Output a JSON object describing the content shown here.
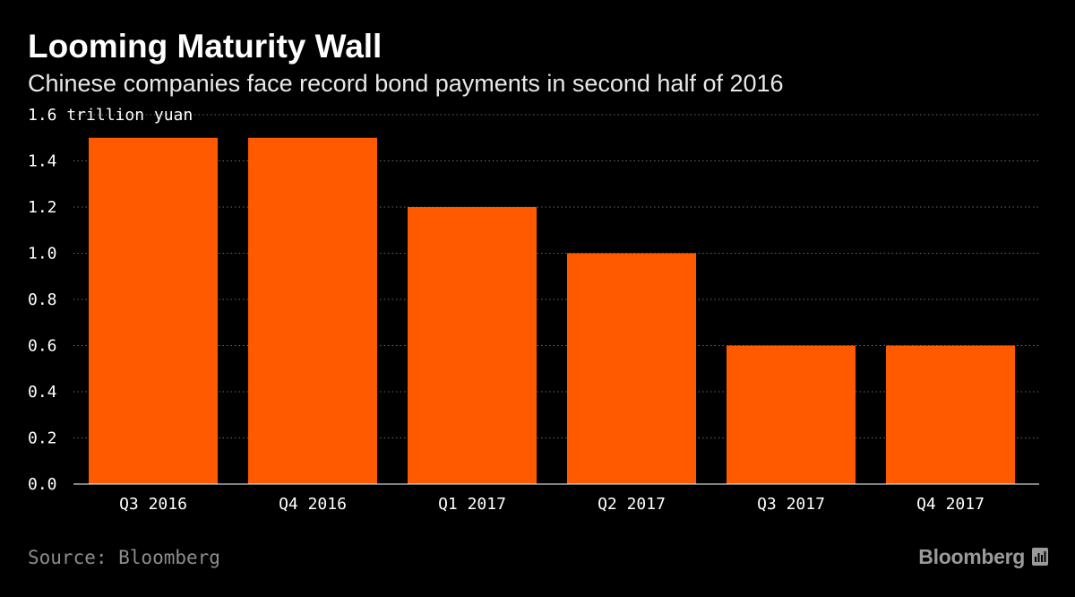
{
  "chart_data": {
    "type": "bar",
    "title": "Looming Maturity Wall",
    "subtitle": "Chinese companies face record bond payments in second half of 2016",
    "ylabel": "trillion yuan",
    "categories": [
      "Q3 2016",
      "Q4 2016",
      "Q1 2017",
      "Q2 2017",
      "Q3 2017",
      "Q4 2017"
    ],
    "values": [
      1.5,
      1.5,
      1.2,
      1.0,
      0.6,
      0.6
    ],
    "ylim": [
      0,
      1.6
    ],
    "yticks": [
      "0.0",
      "0.2",
      "0.4",
      "0.6",
      "0.8",
      "1.0",
      "1.2",
      "1.4",
      "1.6"
    ],
    "grid": true,
    "bar_color": "#ff5a00",
    "background": "#000000"
  },
  "footer": {
    "source": "Source: Bloomberg",
    "brand": "Bloomberg"
  }
}
